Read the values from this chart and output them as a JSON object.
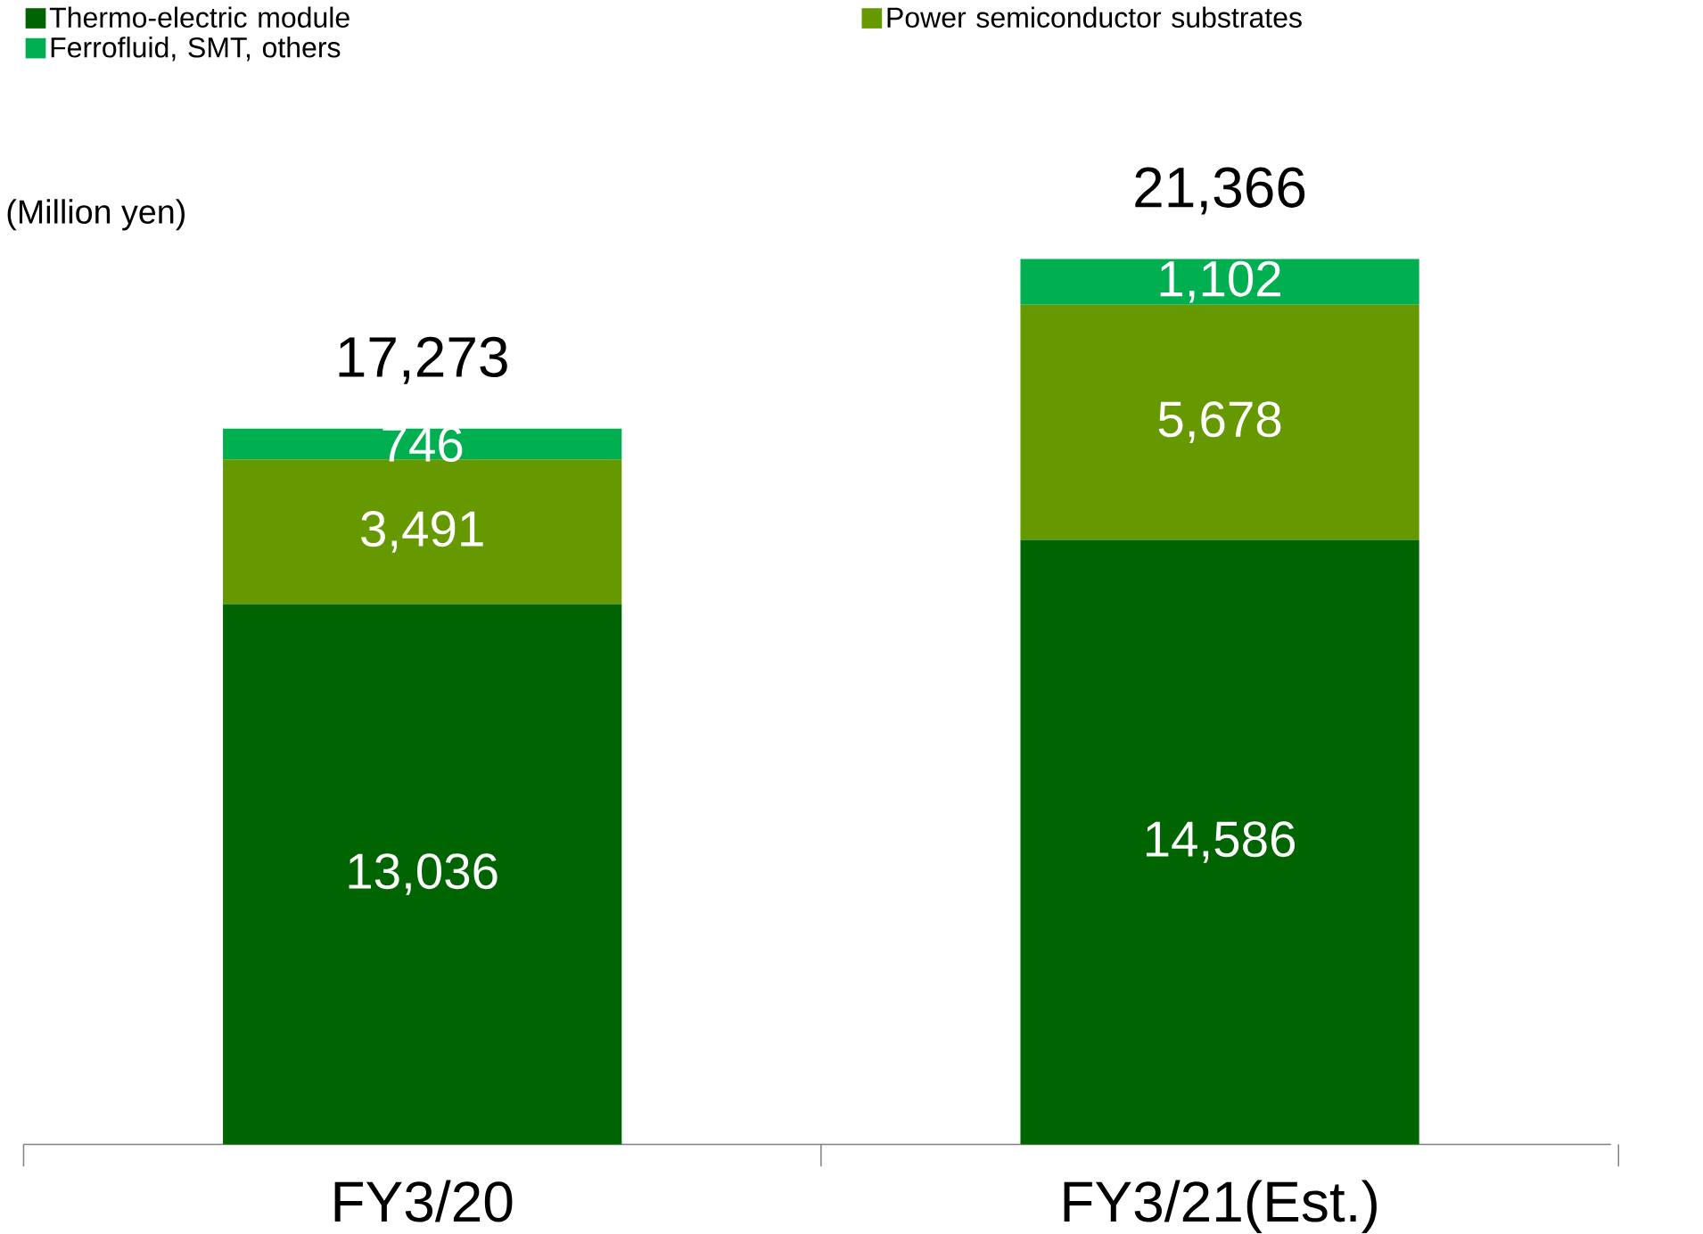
{
  "chart_data": {
    "type": "bar",
    "stacked": true,
    "ylabel": "(Million yen)",
    "categories": [
      "FY3/20",
      "FY3/21(Est.)"
    ],
    "series": [
      {
        "name": "Thermo-electric module",
        "color": "#006400",
        "values": [
          13036,
          14586
        ],
        "value_labels": [
          "13,036",
          "14,586"
        ]
      },
      {
        "name": "Power semiconductor substrates",
        "color": "#669900",
        "values": [
          3491,
          5678
        ],
        "value_labels": [
          "3,491",
          "5,678"
        ]
      },
      {
        "name": "Ferrofluid, SMT, others",
        "color": "#00b050",
        "values": [
          746,
          1102
        ],
        "value_labels": [
          "746",
          "1,102"
        ]
      }
    ],
    "totals": [
      "17,273",
      "21,366"
    ],
    "legend": "top left"
  }
}
